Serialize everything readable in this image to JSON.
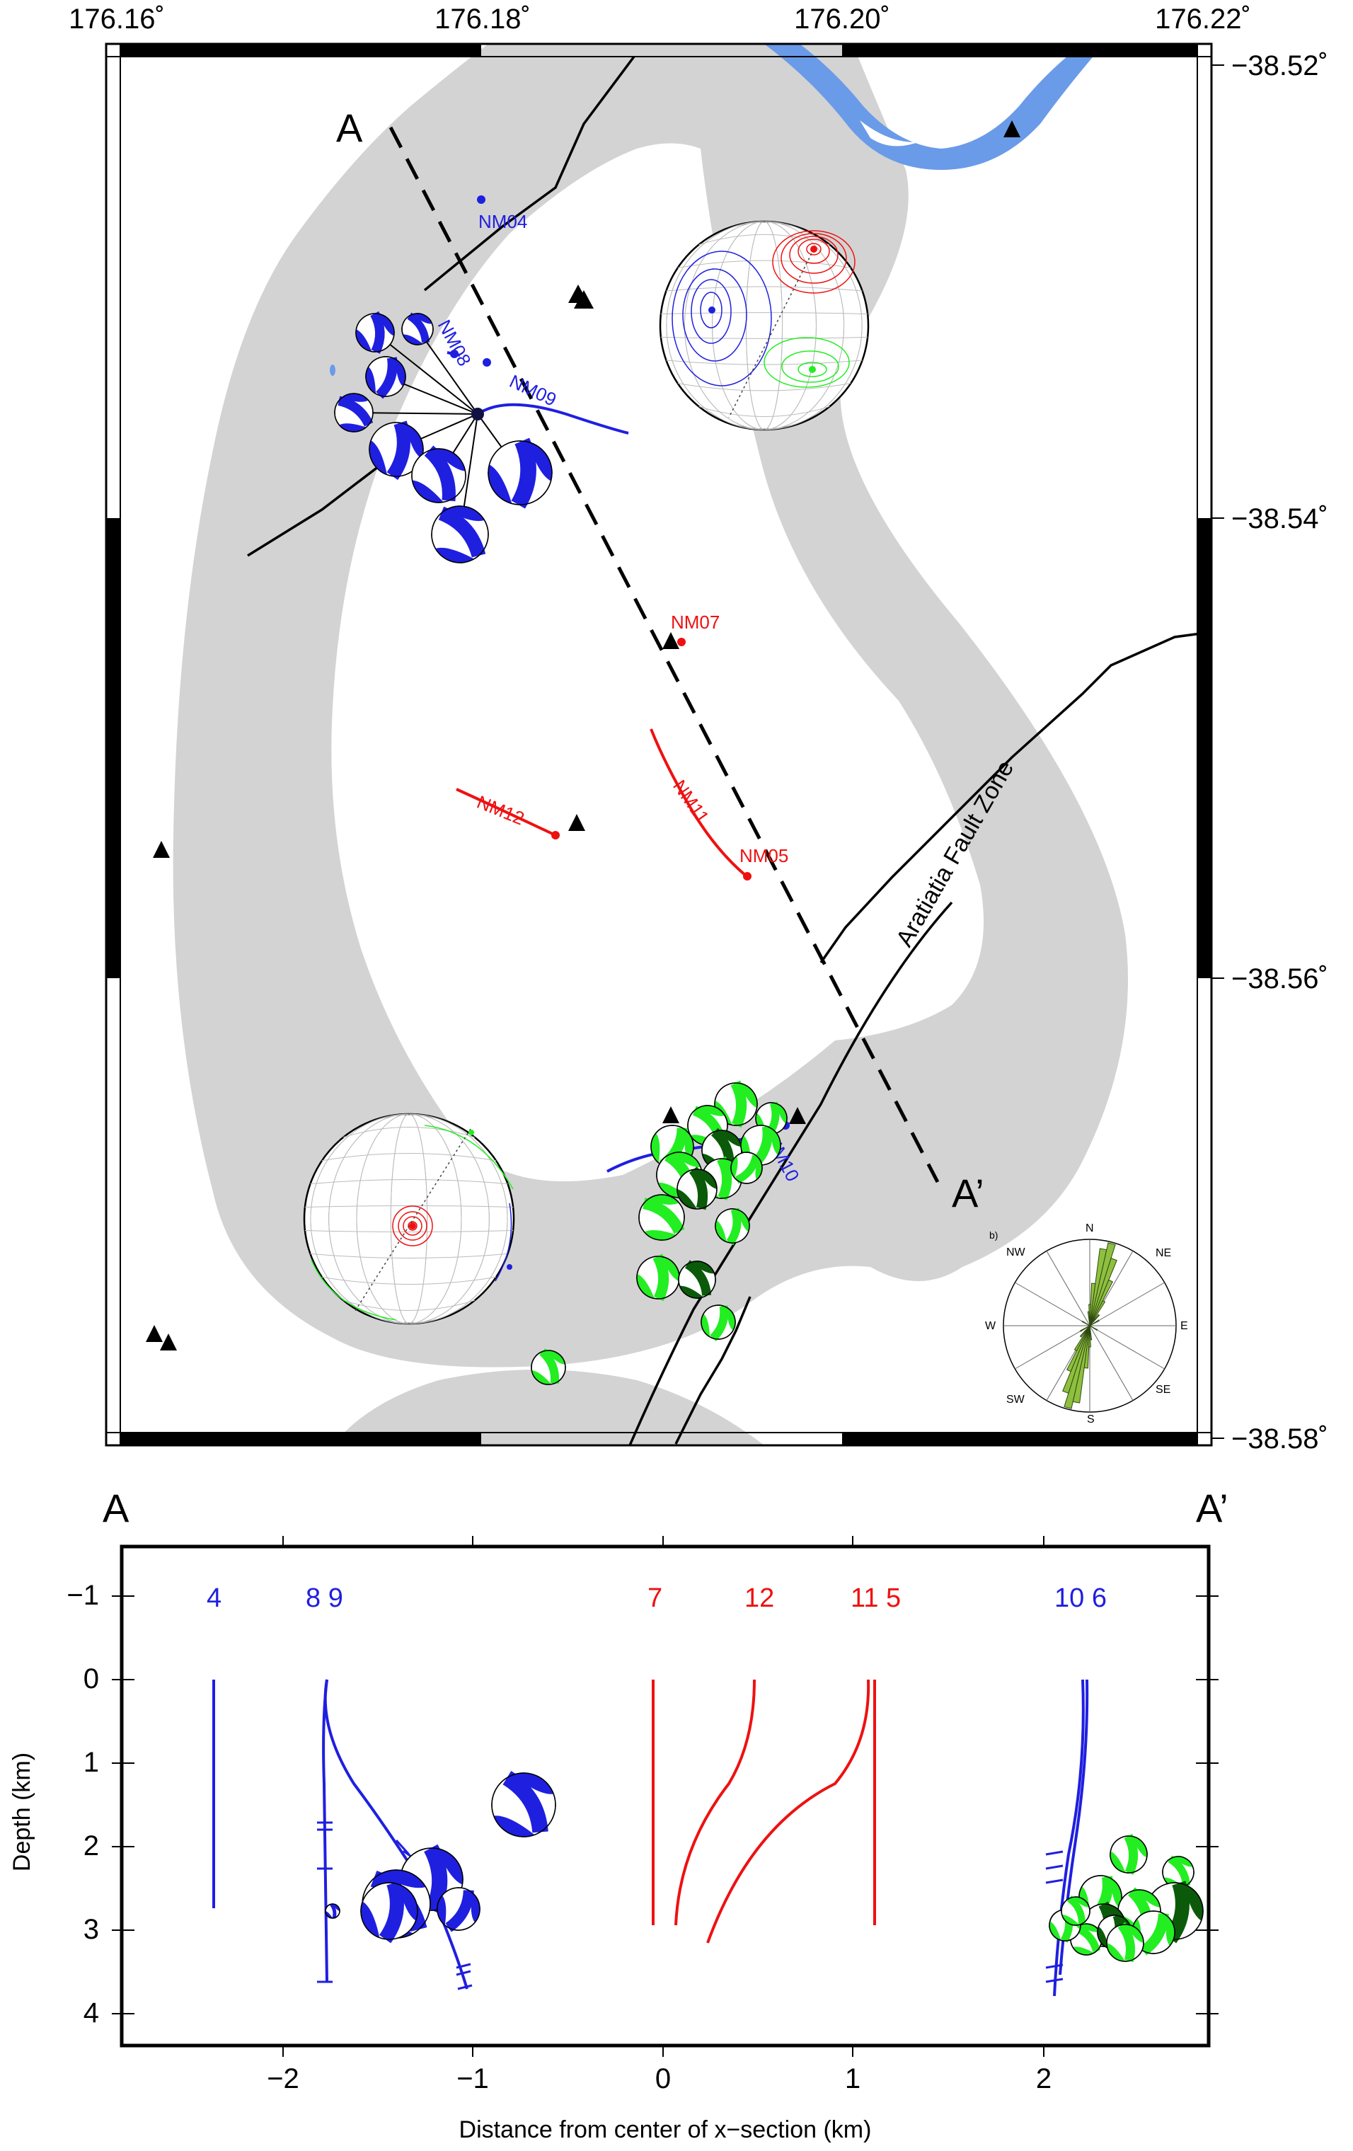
{
  "map": {
    "lon_ticks": [
      "176.16˚",
      "176.18˚",
      "176.20˚",
      "176.22˚"
    ],
    "lat_ticks": [
      "−38.52˚",
      "−38.54˚",
      "−38.56˚",
      "−38.58˚"
    ],
    "section_start": "A",
    "section_end": "A’",
    "fault_label": "Aratiatia Fault Zone",
    "wells_blue": [
      {
        "id": "w4",
        "label": "NM04"
      },
      {
        "id": "w8",
        "label": "NM08"
      },
      {
        "id": "w9",
        "label": "NM09"
      },
      {
        "id": "w10",
        "label": "NM10"
      }
    ],
    "wells_red": [
      {
        "id": "w7",
        "label": "NM07"
      },
      {
        "id": "w12",
        "label": "NM12"
      },
      {
        "id": "w11",
        "label": "NM11"
      },
      {
        "id": "w5",
        "label": "NM05"
      }
    ],
    "rose": {
      "panel_label": "b)",
      "directions": [
        "N",
        "NE",
        "E",
        "SE",
        "S",
        "SW",
        "W",
        "NW"
      ]
    },
    "colors": {
      "field_band": "#d3d3d3",
      "river": "#6a9be8",
      "injection": "#1f1fe0",
      "production": "#ee1111",
      "shallow_events": "#22ee22",
      "deep_events": "#0a5a0a",
      "rose": "#8fbf3f"
    }
  },
  "section": {
    "xlabel": "Distance from center of x−section (km)",
    "ylabel": "Depth (km)",
    "start_label": "A",
    "end_label": "A’",
    "x_ticks": [
      "−2",
      "−1",
      "0",
      "1",
      "2"
    ],
    "y_ticks": [
      "−1",
      "0",
      "1",
      "2",
      "3",
      "4"
    ],
    "well_numbers_blue_left": [
      "4",
      "8 9"
    ],
    "well_numbers_red": [
      "7",
      "12",
      "11 5"
    ],
    "well_numbers_blue_right": [
      "10 6"
    ]
  }
}
